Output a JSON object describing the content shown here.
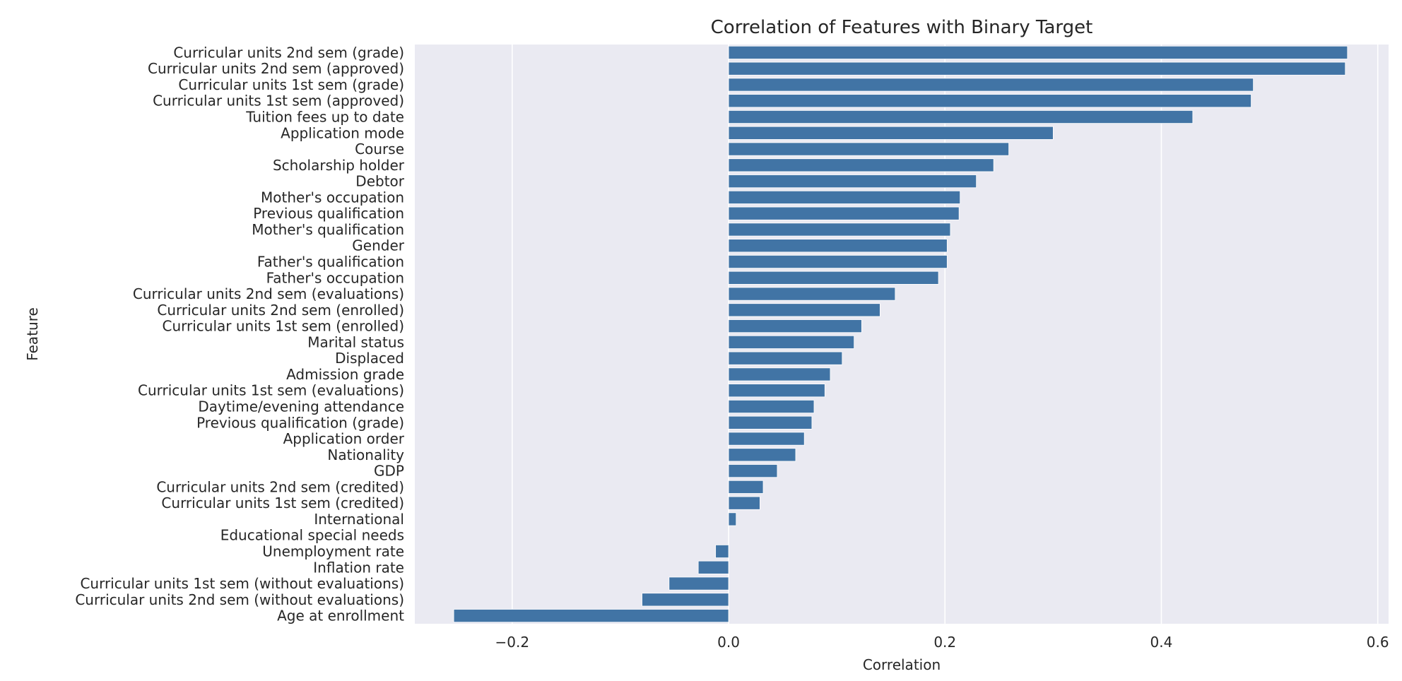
{
  "chart_data": {
    "type": "bar",
    "orientation": "horizontal",
    "title": "Correlation of Features with Binary Target",
    "xlabel": "Correlation",
    "ylabel": "Feature",
    "xlim": [
      -0.29,
      0.61
    ],
    "x_ticks": [
      -0.2,
      0.0,
      0.2,
      0.4,
      0.6
    ],
    "x_tick_labels": [
      "−0.2",
      "0.0",
      "0.2",
      "0.4",
      "0.6"
    ],
    "grid": true,
    "legend": "none",
    "bar_color": "#4174a5",
    "background_color": "#eaeaf2",
    "gridline_color": "#ffffff",
    "categories": [
      "Curricular units 2nd sem (grade)",
      "Curricular units 2nd sem (approved)",
      "Curricular units 1st sem (grade)",
      "Curricular units 1st sem (approved)",
      "Tuition fees up to date",
      "Application mode",
      "Course",
      "Scholarship holder",
      "Debtor",
      "Mother's occupation",
      "Previous qualification",
      "Mother's qualification",
      "Gender",
      "Father's qualification",
      "Father's occupation",
      "Curricular units 2nd sem (evaluations)",
      "Curricular units 2nd sem (enrolled)",
      "Curricular units 1st sem (enrolled)",
      "Marital status",
      "Displaced",
      "Admission grade",
      "Curricular units 1st sem (evaluations)",
      "Daytime/evening attendance",
      "Previous qualification (grade)",
      "Application order",
      "Nationality",
      "GDP",
      "Curricular units 2nd sem (credited)",
      "Curricular units 1st sem (credited)",
      "International",
      "Educational special needs",
      "Unemployment rate",
      "Inflation rate",
      "Curricular units 1st sem (without evaluations)",
      "Curricular units 2nd sem (without evaluations)",
      "Age at enrollment"
    ],
    "values": [
      0.572,
      0.57,
      0.485,
      0.483,
      0.429,
      0.3,
      0.259,
      0.245,
      0.229,
      0.214,
      0.213,
      0.205,
      0.202,
      0.202,
      0.194,
      0.154,
      0.14,
      0.123,
      0.116,
      0.105,
      0.094,
      0.089,
      0.079,
      0.077,
      0.07,
      0.062,
      0.045,
      0.032,
      0.029,
      0.007,
      0.0,
      -0.012,
      -0.028,
      -0.055,
      -0.08,
      -0.254
    ]
  }
}
